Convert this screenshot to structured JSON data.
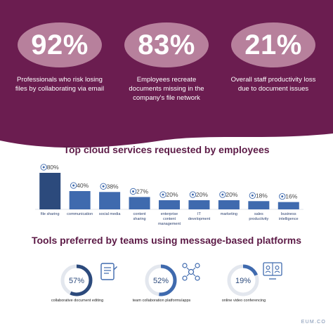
{
  "stats": [
    {
      "value": "92%",
      "caption": "Professionals who risk losing files by collaborating via email"
    },
    {
      "value": "83%",
      "caption": "Employees recreate documents missing in the company's file network"
    },
    {
      "value": "21%",
      "caption": "Overall staff productivity loss due to document issues"
    }
  ],
  "section1_title": "Top cloud services requested by employees",
  "section2_title": "Tools preferred by teams using message-based platforms",
  "chart_data": {
    "type": "bar",
    "title": "Top cloud services requested by employees",
    "categories": [
      "file sharing",
      "communication",
      "social media",
      "content sharing",
      "enterprise content management",
      "IT development",
      "marketing",
      "sales productivity",
      "business intelligence"
    ],
    "values": [
      80,
      40,
      38,
      27,
      20,
      20,
      20,
      18,
      16
    ],
    "value_labels": [
      "80%",
      "40%",
      "38%",
      "27%",
      "20%",
      "20%",
      "20%",
      "18%",
      "16%"
    ],
    "ylim": [
      0,
      80
    ],
    "colors": {
      "first": "#2c4a7c",
      "rest": "#3f6aae"
    },
    "icons": [
      "cloud-icon",
      "chat-icon",
      "social-icon",
      "share-icon",
      "ecm-icon",
      "monitor-icon",
      "megaphone-icon",
      "chart-icon",
      "analytics-icon"
    ]
  },
  "donuts": [
    {
      "percent": 57,
      "label": "57%",
      "caption": "collaborative document editing",
      "icon": "document-icon"
    },
    {
      "percent": 52,
      "label": "52%",
      "caption": "team collaboration platforms/apps",
      "icon": "network-icon"
    },
    {
      "percent": 19,
      "label": "19%",
      "caption": "online video conferencing",
      "icon": "video-call-icon"
    }
  ],
  "footer": "EUM.CO",
  "colors": {
    "brand": "#6b1d50",
    "pill": "#b7809c",
    "accent": "#3f6aae",
    "title": "#5c1a46"
  }
}
